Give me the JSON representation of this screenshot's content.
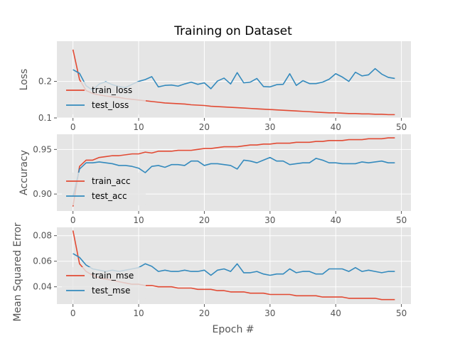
{
  "figure": {
    "title": "Training on Dataset",
    "xlabel": "Epoch #",
    "shared_ylabel": "Mean Squared Error",
    "colors": {
      "background": "#e5e5e5",
      "grid": "#ffffff",
      "train": "#e24a33",
      "test": "#348abd"
    }
  },
  "chart_data": [
    {
      "type": "line",
      "ylabel": "Loss",
      "xlim": [
        -2.45,
        51.45
      ],
      "ylim": [
        0.1,
        0.31
      ],
      "xticks": [
        0,
        10,
        20,
        30,
        40,
        50
      ],
      "yticks": [
        0.1,
        0.2
      ],
      "ytick_labels": [
        "0.1",
        "0.2"
      ],
      "legend": "left",
      "grid": true,
      "series": [
        {
          "name": "train_loss",
          "color": "#e24a33",
          "values": [
            0.287,
            0.205,
            0.175,
            0.167,
            0.163,
            0.16,
            0.158,
            0.156,
            0.153,
            0.151,
            0.149,
            0.147,
            0.145,
            0.143,
            0.141,
            0.14,
            0.139,
            0.138,
            0.136,
            0.135,
            0.134,
            0.132,
            0.131,
            0.13,
            0.129,
            0.128,
            0.127,
            0.126,
            0.125,
            0.124,
            0.123,
            0.122,
            0.121,
            0.12,
            0.119,
            0.118,
            0.117,
            0.116,
            0.115,
            0.114,
            0.114,
            0.113,
            0.112,
            0.112,
            0.111,
            0.111,
            0.11,
            0.11,
            0.109,
            0.109
          ]
        },
        {
          "name": "test_loss",
          "color": "#348abd",
          "values": [
            0.232,
            0.222,
            0.188,
            0.176,
            0.193,
            0.199,
            0.191,
            0.186,
            0.183,
            0.192,
            0.2,
            0.205,
            0.213,
            0.185,
            0.189,
            0.19,
            0.187,
            0.193,
            0.198,
            0.192,
            0.196,
            0.18,
            0.201,
            0.209,
            0.193,
            0.224,
            0.196,
            0.198,
            0.208,
            0.186,
            0.185,
            0.191,
            0.192,
            0.221,
            0.189,
            0.202,
            0.194,
            0.194,
            0.198,
            0.206,
            0.221,
            0.212,
            0.2,
            0.225,
            0.215,
            0.218,
            0.235,
            0.22,
            0.211,
            0.208
          ]
        }
      ]
    },
    {
      "type": "line",
      "ylabel": "Accuracy",
      "xlim": [
        -2.45,
        51.45
      ],
      "ylim": [
        0.881,
        0.967
      ],
      "xticks": [
        0,
        10,
        20,
        30,
        40,
        50
      ],
      "yticks": [
        0.9,
        0.95
      ],
      "ytick_labels": [
        "0.90",
        "0.95"
      ],
      "legend": "left",
      "grid": true,
      "series": [
        {
          "name": "train_acc",
          "color": "#e24a33",
          "values": [
            0.886,
            0.931,
            0.938,
            0.938,
            0.941,
            0.942,
            0.943,
            0.943,
            0.944,
            0.945,
            0.945,
            0.947,
            0.946,
            0.948,
            0.948,
            0.948,
            0.949,
            0.949,
            0.949,
            0.95,
            0.951,
            0.951,
            0.952,
            0.953,
            0.953,
            0.953,
            0.954,
            0.955,
            0.955,
            0.956,
            0.956,
            0.957,
            0.957,
            0.957,
            0.958,
            0.958,
            0.958,
            0.959,
            0.959,
            0.96,
            0.96,
            0.96,
            0.961,
            0.961,
            0.961,
            0.962,
            0.962,
            0.962,
            0.963,
            0.963
          ]
        },
        {
          "name": "test_acc",
          "color": "#348abd",
          "values": [
            0.897,
            0.928,
            0.935,
            0.935,
            0.936,
            0.935,
            0.934,
            0.932,
            0.932,
            0.931,
            0.929,
            0.924,
            0.931,
            0.932,
            0.93,
            0.933,
            0.933,
            0.932,
            0.937,
            0.937,
            0.932,
            0.934,
            0.934,
            0.933,
            0.932,
            0.928,
            0.938,
            0.937,
            0.935,
            0.938,
            0.941,
            0.937,
            0.937,
            0.933,
            0.934,
            0.935,
            0.935,
            0.94,
            0.938,
            0.935,
            0.935,
            0.934,
            0.934,
            0.934,
            0.936,
            0.935,
            0.936,
            0.937,
            0.935,
            0.935
          ]
        }
      ]
    },
    {
      "type": "line",
      "ylabel": "",
      "xlim": [
        -2.45,
        51.45
      ],
      "ylim": [
        0.0265,
        0.0865
      ],
      "xticks": [
        0,
        10,
        20,
        30,
        40,
        50
      ],
      "yticks": [
        0.04,
        0.06,
        0.08
      ],
      "ytick_labels": [
        "0.04",
        "0.06",
        "0.08"
      ],
      "legend": "left",
      "grid": true,
      "series": [
        {
          "name": "train_mse",
          "color": "#e24a33",
          "values": [
            0.084,
            0.058,
            0.052,
            0.049,
            0.047,
            0.046,
            0.045,
            0.044,
            0.043,
            0.042,
            0.042,
            0.041,
            0.041,
            0.04,
            0.04,
            0.04,
            0.039,
            0.039,
            0.039,
            0.038,
            0.038,
            0.038,
            0.037,
            0.037,
            0.036,
            0.036,
            0.036,
            0.035,
            0.035,
            0.035,
            0.034,
            0.034,
            0.034,
            0.034,
            0.033,
            0.033,
            0.033,
            0.033,
            0.032,
            0.032,
            0.032,
            0.032,
            0.031,
            0.031,
            0.031,
            0.031,
            0.031,
            0.03,
            0.03,
            0.03
          ]
        },
        {
          "name": "test_mse",
          "color": "#348abd",
          "values": [
            0.066,
            0.063,
            0.057,
            0.054,
            0.053,
            0.052,
            0.053,
            0.052,
            0.053,
            0.054,
            0.055,
            0.058,
            0.056,
            0.052,
            0.053,
            0.052,
            0.052,
            0.053,
            0.052,
            0.052,
            0.053,
            0.049,
            0.053,
            0.054,
            0.052,
            0.058,
            0.051,
            0.051,
            0.052,
            0.05,
            0.049,
            0.05,
            0.05,
            0.054,
            0.051,
            0.052,
            0.052,
            0.05,
            0.05,
            0.054,
            0.054,
            0.054,
            0.052,
            0.055,
            0.052,
            0.053,
            0.052,
            0.051,
            0.052,
            0.052
          ]
        }
      ]
    }
  ]
}
